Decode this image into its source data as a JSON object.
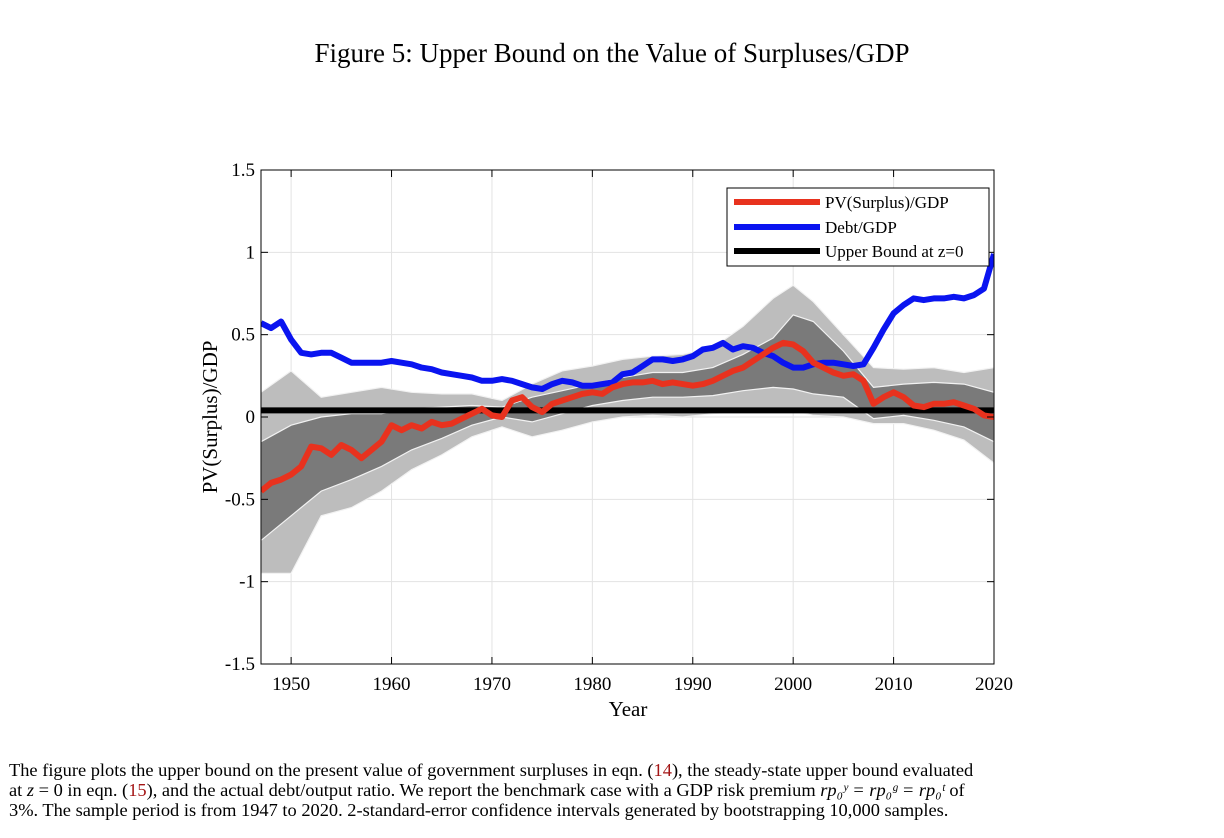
{
  "figure": {
    "title": "Figure 5: Upper Bound on the Value of Surpluses/GDP"
  },
  "chart_data": {
    "type": "line",
    "title": "",
    "xlabel": "Year",
    "ylabel": "PV(Surplus)/GDP",
    "xlim": [
      1947,
      2020
    ],
    "ylim": [
      -1.5,
      1.5
    ],
    "x_ticks": [
      1950,
      1960,
      1970,
      1980,
      1990,
      2000,
      2010,
      2020
    ],
    "x_tick_labels": [
      "1950",
      "1960",
      "1970",
      "1980",
      "1990",
      "2000",
      "2010",
      "2020"
    ],
    "y_ticks": [
      -1.5,
      -1,
      -0.5,
      0,
      0.5,
      1,
      1.5
    ],
    "y_tick_labels": [
      "-1.5",
      "-1",
      "-0.5",
      "0",
      "0.5",
      "1",
      "1.5"
    ],
    "grid": true,
    "legend_position": "top-right",
    "colors": {
      "pv": "#e8321e",
      "debt": "#0a14f0",
      "bound": "#000000",
      "band_outer": "#bdbdbd",
      "band_inner": "#7a7a7a"
    },
    "series": [
      {
        "name": "PV(Surplus)/GDP",
        "x": [
          1947,
          1948,
          1949,
          1950,
          1951,
          1952,
          1953,
          1954,
          1955,
          1956,
          1957,
          1958,
          1959,
          1960,
          1961,
          1962,
          1963,
          1964,
          1965,
          1966,
          1967,
          1968,
          1969,
          1970,
          1971,
          1972,
          1973,
          1974,
          1975,
          1976,
          1977,
          1978,
          1979,
          1980,
          1981,
          1982,
          1983,
          1984,
          1985,
          1986,
          1987,
          1988,
          1989,
          1990,
          1991,
          1992,
          1993,
          1994,
          1995,
          1996,
          1997,
          1998,
          1999,
          2000,
          2001,
          2002,
          2003,
          2004,
          2005,
          2006,
          2007,
          2008,
          2009,
          2010,
          2011,
          2012,
          2013,
          2014,
          2015,
          2016,
          2017,
          2018,
          2019,
          2020
        ],
        "y": [
          -0.45,
          -0.4,
          -0.38,
          -0.35,
          -0.3,
          -0.18,
          -0.19,
          -0.23,
          -0.17,
          -0.2,
          -0.25,
          -0.2,
          -0.15,
          -0.05,
          -0.08,
          -0.05,
          -0.07,
          -0.03,
          -0.05,
          -0.04,
          -0.01,
          0.02,
          0.05,
          0.01,
          0.0,
          0.1,
          0.12,
          0.06,
          0.03,
          0.08,
          0.1,
          0.12,
          0.14,
          0.15,
          0.14,
          0.18,
          0.2,
          0.21,
          0.21,
          0.22,
          0.2,
          0.21,
          0.2,
          0.19,
          0.2,
          0.22,
          0.25,
          0.28,
          0.3,
          0.34,
          0.38,
          0.42,
          0.45,
          0.44,
          0.4,
          0.33,
          0.3,
          0.27,
          0.25,
          0.26,
          0.22,
          0.08,
          0.12,
          0.15,
          0.12,
          0.07,
          0.06,
          0.08,
          0.08,
          0.09,
          0.07,
          0.05,
          0.01,
          0.0
        ]
      },
      {
        "name": "Debt/GDP",
        "x": [
          1947,
          1948,
          1949,
          1950,
          1951,
          1952,
          1953,
          1954,
          1955,
          1956,
          1957,
          1958,
          1959,
          1960,
          1961,
          1962,
          1963,
          1964,
          1965,
          1966,
          1967,
          1968,
          1969,
          1970,
          1971,
          1972,
          1973,
          1974,
          1975,
          1976,
          1977,
          1978,
          1979,
          1980,
          1981,
          1982,
          1983,
          1984,
          1985,
          1986,
          1987,
          1988,
          1989,
          1990,
          1991,
          1992,
          1993,
          1994,
          1995,
          1996,
          1997,
          1998,
          1999,
          2000,
          2001,
          2002,
          2003,
          2004,
          2005,
          2006,
          2007,
          2008,
          2009,
          2010,
          2011,
          2012,
          2013,
          2014,
          2015,
          2016,
          2017,
          2018,
          2019,
          2020
        ],
        "y": [
          0.57,
          0.54,
          0.58,
          0.47,
          0.39,
          0.38,
          0.39,
          0.39,
          0.36,
          0.33,
          0.33,
          0.33,
          0.33,
          0.34,
          0.33,
          0.32,
          0.3,
          0.29,
          0.27,
          0.26,
          0.25,
          0.24,
          0.22,
          0.22,
          0.23,
          0.22,
          0.2,
          0.18,
          0.17,
          0.2,
          0.22,
          0.21,
          0.19,
          0.19,
          0.2,
          0.21,
          0.26,
          0.27,
          0.31,
          0.35,
          0.35,
          0.34,
          0.35,
          0.37,
          0.41,
          0.42,
          0.45,
          0.41,
          0.43,
          0.42,
          0.39,
          0.37,
          0.33,
          0.3,
          0.3,
          0.32,
          0.33,
          0.33,
          0.32,
          0.31,
          0.32,
          0.42,
          0.53,
          0.63,
          0.68,
          0.72,
          0.71,
          0.72,
          0.72,
          0.73,
          0.72,
          0.74,
          0.78,
          0.99
        ]
      },
      {
        "name": "Upper Bound at z=0",
        "x": [
          1947,
          2020
        ],
        "y": [
          0.04,
          0.04
        ]
      }
    ],
    "bands": {
      "x": [
        1947,
        1950,
        1953,
        1956,
        1959,
        1962,
        1965,
        1968,
        1971,
        1974,
        1977,
        1980,
        1983,
        1986,
        1989,
        1992,
        1995,
        1998,
        2000,
        2002,
        2005,
        2008,
        2011,
        2014,
        2017,
        2020
      ],
      "outer_lower": [
        -0.95,
        -0.95,
        -0.6,
        -0.55,
        -0.45,
        -0.32,
        -0.23,
        -0.12,
        -0.06,
        -0.12,
        -0.08,
        -0.03,
        0.0,
        0.01,
        0.0,
        0.02,
        0.04,
        0.05,
        0.04,
        0.01,
        0.0,
        -0.04,
        -0.04,
        -0.08,
        -0.14,
        -0.28
      ],
      "inner_lower": [
        -0.75,
        -0.6,
        -0.45,
        -0.38,
        -0.3,
        -0.2,
        -0.13,
        -0.05,
        0.0,
        -0.03,
        0.02,
        0.07,
        0.1,
        0.12,
        0.12,
        0.13,
        0.16,
        0.18,
        0.17,
        0.14,
        0.12,
        -0.01,
        0.01,
        -0.02,
        -0.06,
        -0.15
      ],
      "inner_upper": [
        -0.15,
        -0.05,
        0.0,
        0.02,
        0.02,
        0.05,
        0.06,
        0.07,
        0.06,
        0.12,
        0.16,
        0.2,
        0.24,
        0.27,
        0.27,
        0.3,
        0.38,
        0.48,
        0.62,
        0.58,
        0.4,
        0.18,
        0.2,
        0.21,
        0.2,
        0.15
      ],
      "outer_upper": [
        0.15,
        0.28,
        0.12,
        0.15,
        0.18,
        0.15,
        0.14,
        0.14,
        0.1,
        0.2,
        0.28,
        0.31,
        0.35,
        0.37,
        0.38,
        0.42,
        0.55,
        0.72,
        0.8,
        0.7,
        0.5,
        0.3,
        0.29,
        0.3,
        0.27,
        0.3
      ]
    }
  },
  "caption": {
    "line1_before": "The figure plots the upper bound on the present value of government surpluses in eqn. (",
    "ref14": "14",
    "line1_after": "), the steady-state upper bound evaluated",
    "line2_a": "at ",
    "z": "z",
    "line2_b": " = 0 in eqn. (",
    "ref15": "15",
    "line2_c": "), and the actual debt/output ratio. We report the benchmark case with a GDP risk premium ",
    "formula": "rp₀ʸ = rp₀ᵍ = rp₀ᵗ",
    "line2_d": " of",
    "line3": "3%. The sample period is from 1947 to 2020. 2-standard-error confidence intervals generated by bootstrapping 10,000 samples."
  }
}
